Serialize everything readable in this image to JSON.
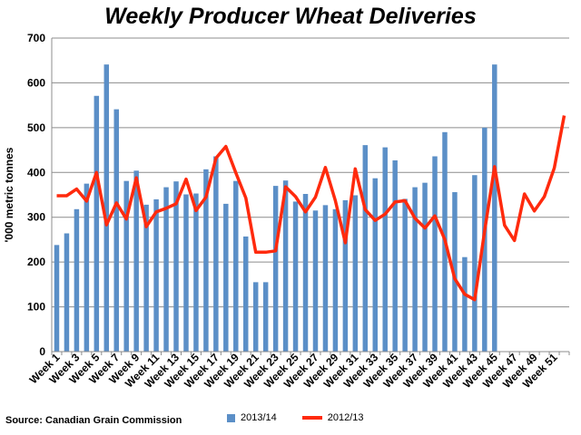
{
  "chart_data": {
    "type": "bar",
    "title": "Weekly Producer Wheat Deliveries",
    "xlabel": "",
    "ylabel": "'000 metric tonnes",
    "ylim": [
      0,
      700
    ],
    "yticks": [
      0,
      100,
      200,
      300,
      400,
      500,
      600,
      700
    ],
    "grid": true,
    "legend_position": "bottom",
    "xtick_labels": [
      "Week 1",
      "Week 3",
      "Week 5",
      "Week 7",
      "Week 9",
      "Week 11",
      "Week 13",
      "Week 15",
      "Week 17",
      "Week 19",
      "Week 21",
      "Week 23",
      "Week 25",
      "Week 27",
      "Week 29",
      "Week 31",
      "Week 33",
      "Week 35",
      "Week 37",
      "Week 39",
      "Week 41",
      "Week 43",
      "Week 45",
      "Week 47",
      "Week 49",
      "Week 51"
    ],
    "series": [
      {
        "name": "2013/14",
        "kind": "bar",
        "color": "#5B8FC7",
        "values": [
          238,
          264,
          318,
          375,
          571,
          641,
          541,
          381,
          404,
          328,
          340,
          367,
          380,
          351,
          353,
          407,
          436,
          330,
          381,
          257,
          155,
          155,
          370,
          382,
          335,
          352,
          315,
          327,
          318,
          338,
          349,
          461,
          387,
          456,
          427,
          341,
          367,
          377,
          436,
          490,
          356,
          211,
          394,
          500,
          641,
          null,
          null,
          null,
          null,
          null,
          null,
          null
        ]
      },
      {
        "name": "2012/13",
        "kind": "line",
        "color": "#FF2A0D",
        "values": [
          348,
          348,
          363,
          336,
          400,
          283,
          332,
          296,
          388,
          279,
          312,
          320,
          330,
          385,
          315,
          345,
          432,
          458,
          399,
          343,
          222,
          222,
          225,
          368,
          346,
          312,
          345,
          411,
          337,
          243,
          408,
          317,
          293,
          307,
          334,
          337,
          298,
          276,
          303,
          250,
          163,
          128,
          116,
          269,
          413,
          282,
          248,
          352,
          314,
          346,
          410,
          527
        ]
      }
    ]
  },
  "source_text": "Source: Canadian Grain Commission"
}
